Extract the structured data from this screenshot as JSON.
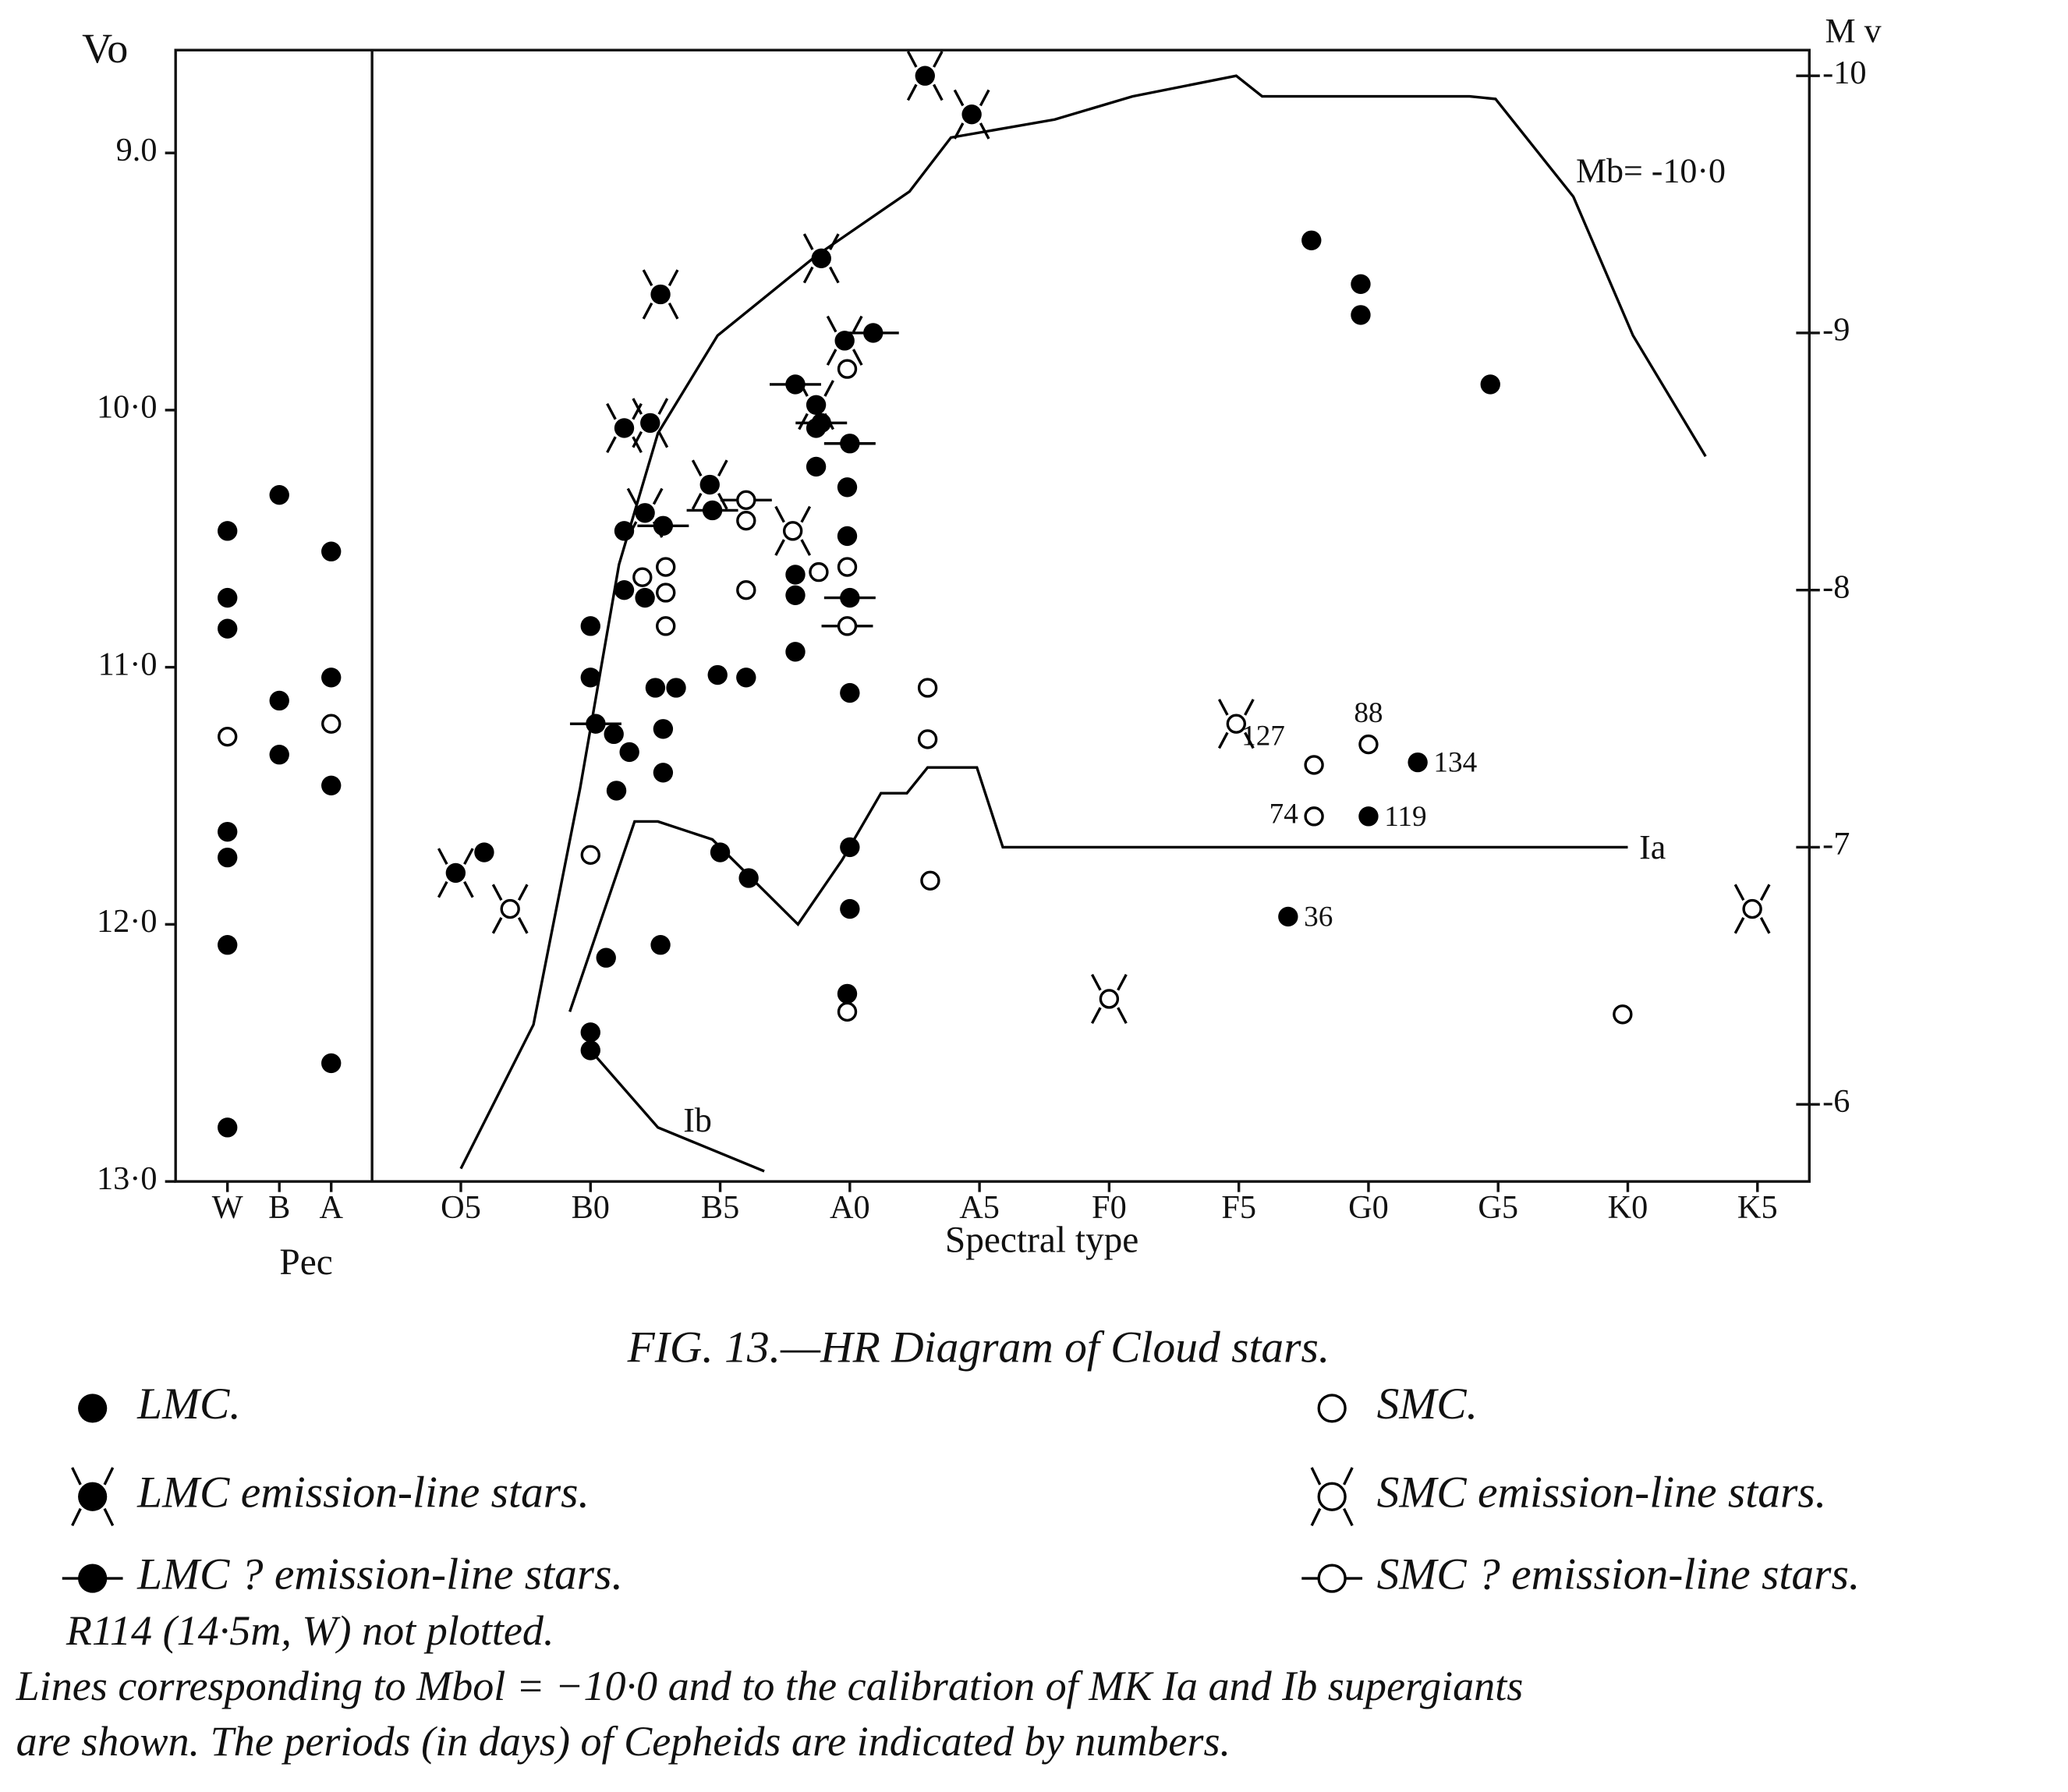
{
  "chart_data": {
    "type": "scatter",
    "ylabel": "Vo",
    "y2label": "M v",
    "xlabel": "Spectral  type",
    "xgroup_label": "Pec",
    "caption": "FIG. 13.—HR Diagram of Cloud stars.",
    "notes": [
      "R114 (14·5m, W) not plotted.",
      "Lines corresponding to Mbol = −10·0 and to the calibration of MK Ia and Ib supergiants",
      "are shown.   The periods (in days) of Cepheids are indicated by numbers."
    ],
    "xlim": [
      -6,
      57
    ],
    "xticks": [
      {
        "value": -4,
        "label": "W"
      },
      {
        "value": -2,
        "label": "B"
      },
      {
        "value": 0,
        "label": "A"
      },
      {
        "value": 5,
        "label": "O5"
      },
      {
        "value": 10,
        "label": "B0"
      },
      {
        "value": 15,
        "label": "B5"
      },
      {
        "value": 20,
        "label": "A0"
      },
      {
        "value": 25,
        "label": "A5"
      },
      {
        "value": 30,
        "label": "F0"
      },
      {
        "value": 35,
        "label": "F5"
      },
      {
        "value": 40,
        "label": "G0"
      },
      {
        "value": 45,
        "label": "G5"
      },
      {
        "value": 50,
        "label": "K0"
      },
      {
        "value": 55,
        "label": "K5"
      }
    ],
    "ylim": [
      8.6,
      13.0
    ],
    "y_inverted": true,
    "yticks": [
      {
        "value": 9,
        "label": "9.0"
      },
      {
        "value": 10,
        "label": "10·0"
      },
      {
        "value": 11,
        "label": "11·0"
      },
      {
        "value": 12,
        "label": "12·0"
      },
      {
        "value": 13,
        "label": "13·0"
      }
    ],
    "y2lim": [
      -10.1,
      -5.7
    ],
    "y2ticks": [
      -10,
      -9,
      -8,
      -7,
      -6
    ],
    "grid": false,
    "legend": "bottom",
    "series": [
      {
        "name": "LMC.",
        "color": "#000000",
        "marker": "filled",
        "style": "plain",
        "x": [
          -4,
          -4,
          -4,
          -4,
          -4,
          -4,
          -4,
          -2,
          -2,
          -2,
          0,
          0,
          0,
          0,
          5.9,
          10,
          10,
          10,
          10,
          10.9,
          11.5,
          11,
          11.3,
          11.3,
          12.1,
          12.5,
          12.8,
          12.8,
          12.7,
          13.3,
          14.9,
          16,
          15,
          16.1,
          10.6,
          17.9,
          17.9,
          17.9,
          18.7,
          18.7,
          19.9,
          19.9,
          19.9,
          20,
          20,
          20,
          37.8,
          39.7,
          39.7,
          44.7,
          36.9,
          40,
          41.9
        ],
        "values": [
          10.47,
          10.73,
          10.85,
          11.64,
          11.74,
          12.08,
          12.79,
          10.33,
          11.13,
          11.34,
          10.55,
          11.04,
          11.46,
          12.54,
          11.72,
          10.84,
          11.04,
          12.42,
          12.49,
          11.26,
          11.33,
          11.48,
          10.7,
          10.47,
          10.73,
          11.08,
          11.24,
          11.41,
          12.08,
          11.08,
          11.03,
          11.04,
          11.72,
          11.82,
          12.13,
          10.64,
          10.72,
          10.94,
          10.22,
          10.07,
          10.3,
          10.49,
          12.27,
          11.1,
          11.7,
          11.94,
          9.34,
          9.51,
          9.63,
          9.9,
          11.97,
          11.58,
          11.37
        ],
        "point_labels": [
          null,
          null,
          null,
          null,
          null,
          null,
          null,
          null,
          null,
          null,
          null,
          null,
          null,
          null,
          null,
          null,
          null,
          null,
          null,
          null,
          null,
          null,
          null,
          null,
          null,
          null,
          null,
          null,
          null,
          null,
          null,
          null,
          null,
          null,
          null,
          null,
          null,
          null,
          null,
          null,
          null,
          null,
          null,
          null,
          null,
          null,
          null,
          null,
          null,
          null,
          36,
          119,
          134
        ]
      },
      {
        "name": "LMC emission-line  stars.",
        "color": "#000000",
        "marker": "filled",
        "style": "emission",
        "x": [
          22.9,
          24.7,
          18.9,
          12.7,
          11.3,
          12.3,
          12.1,
          14.6,
          18.7,
          19.8,
          4.8
        ],
        "values": [
          8.7,
          8.85,
          9.41,
          9.55,
          10.07,
          10.05,
          10.4,
          10.29,
          9.98,
          9.73,
          11.8
        ]
      },
      {
        "name": "LMC ? emission-line stars.",
        "color": "#000000",
        "marker": "filled",
        "style": "query",
        "x": [
          10.2,
          12.8,
          17.9,
          20,
          20,
          20.9,
          18.9,
          14.7
        ],
        "values": [
          11.22,
          10.45,
          9.9,
          10.13,
          10.73,
          9.7,
          10.05,
          10.39
        ]
      },
      {
        "name": "SMC.",
        "color": "#000000",
        "marker": "open",
        "style": "plain",
        "x": [
          -4,
          0,
          10,
          12,
          12.9,
          12.9,
          12.9,
          16,
          16,
          18.8,
          19.9,
          19.9,
          23,
          23,
          23.1,
          19.9,
          49.8,
          37.9,
          40,
          37.9
        ],
        "values": [
          11.27,
          11.22,
          11.73,
          10.65,
          10.61,
          10.71,
          10.84,
          10.43,
          10.7,
          10.63,
          10.61,
          9.84,
          11.08,
          11.28,
          11.83,
          12.34,
          12.35,
          11.38,
          11.3,
          11.58
        ],
        "point_labels": [
          null,
          null,
          null,
          null,
          null,
          null,
          null,
          null,
          null,
          null,
          null,
          null,
          null,
          null,
          null,
          null,
          null,
          127,
          88,
          74
        ]
      },
      {
        "name": "SMC emission-line stars.",
        "color": "#000000",
        "marker": "open",
        "style": "emission",
        "x": [
          6.9,
          17.8,
          34.9,
          30,
          54.8
        ],
        "values": [
          11.94,
          10.47,
          11.22,
          12.29,
          11.94
        ]
      },
      {
        "name": "SMC ? emission-line stars.",
        "color": "#000000",
        "marker": "open",
        "style": "query",
        "x": [
          16,
          19.9
        ],
        "values": [
          10.35,
          10.84
        ]
      }
    ],
    "lines": [
      {
        "name": "Mb= -10·0",
        "color": "#000000",
        "x": [
          5,
          7.8,
          9.6,
          11.1,
          12.6,
          14.9,
          18.7,
          22.3,
          23.9,
          27.9,
          30.9,
          34.9,
          35.9,
          43.9,
          44.9,
          47.9,
          50.2,
          53
        ],
        "values": [
          12.95,
          12.39,
          11.47,
          10.6,
          10.09,
          9.71,
          9.4,
          9.15,
          8.94,
          8.87,
          8.78,
          8.7,
          8.78,
          8.78,
          8.79,
          9.17,
          9.71,
          10.18
        ]
      },
      {
        "name": "Ia",
        "color": "#000000",
        "x": [
          9.2,
          11.7,
          12.6,
          14.7,
          18,
          19.7,
          21.2,
          22.2,
          23,
          24.9,
          25.9,
          50
        ],
        "values": [
          12.34,
          11.6,
          11.6,
          11.67,
          12,
          11.75,
          11.49,
          11.49,
          11.39,
          11.39,
          11.7,
          11.7
        ]
      },
      {
        "name": "Ib",
        "color": "#000000",
        "x": [
          10,
          12.6,
          16.7
        ],
        "values": [
          12.49,
          12.79,
          12.96
        ]
      }
    ]
  }
}
